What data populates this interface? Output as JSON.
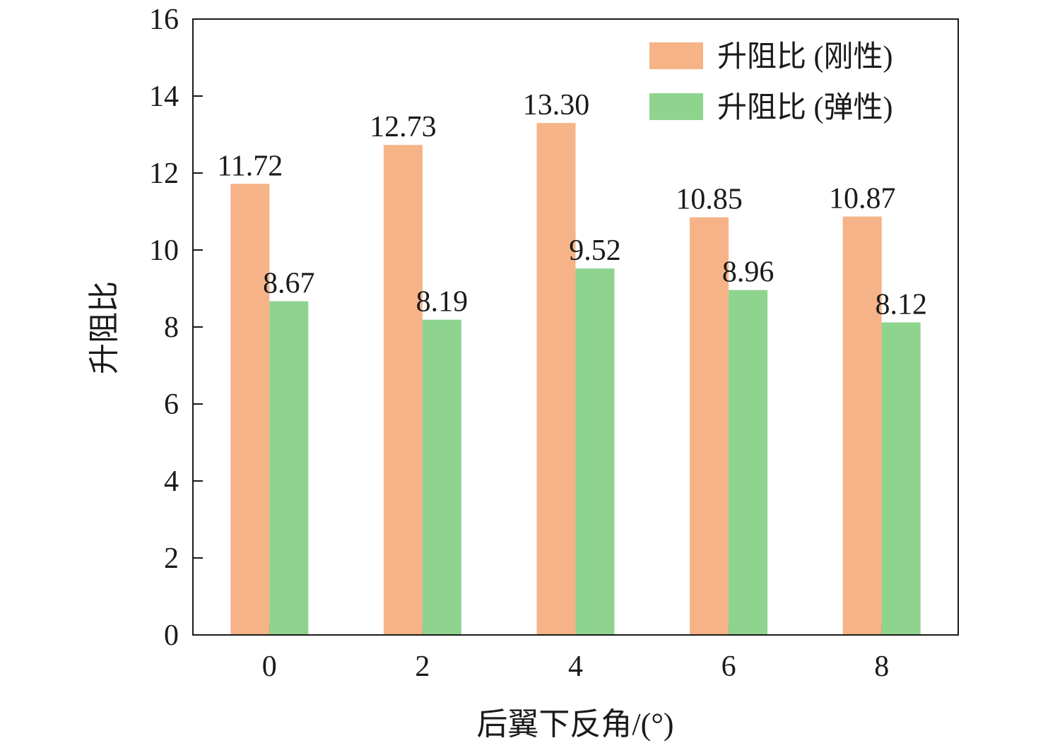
{
  "chart_data": {
    "type": "bar",
    "categories": [
      "0",
      "2",
      "4",
      "6",
      "8"
    ],
    "series": [
      {
        "name": "升阻比 (刚性)",
        "values": [
          11.72,
          12.73,
          13.3,
          10.85,
          10.87
        ],
        "labels": [
          "11.72",
          "12.73",
          "13.30",
          "10.85",
          "10.87"
        ],
        "color": "#F5B387"
      },
      {
        "name": "升阻比 (弹性)",
        "values": [
          8.67,
          8.19,
          9.52,
          8.96,
          8.12
        ],
        "labels": [
          "8.67",
          "8.19",
          "9.52",
          "8.96",
          "8.12"
        ],
        "color": "#8ED48F"
      }
    ],
    "xlabel": "后翼下反角/(°)",
    "ylabel": "升阻比",
    "ylim": [
      0,
      16
    ],
    "yticks": [
      "0",
      "2",
      "4",
      "6",
      "8",
      "10",
      "12",
      "14",
      "16"
    ],
    "grid": false,
    "legend_position": "top-right"
  }
}
